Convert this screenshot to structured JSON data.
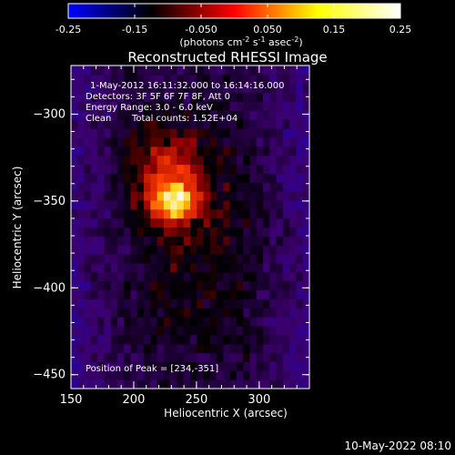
{
  "chart_data": {
    "type": "heatmap",
    "title": "Reconstructed RHESSI Image",
    "xlabel": "Heliocentric X (arcsec)",
    "ylabel": "Heliocentric Y (arcsec)",
    "xlim": [
      150,
      340
    ],
    "ylim": [
      -458,
      -272
    ],
    "x_ticks": [
      150,
      200,
      250,
      300
    ],
    "y_ticks": [
      -300,
      -350,
      -400,
      -450
    ],
    "colorbar": {
      "range": [
        -0.25,
        0.25
      ],
      "ticks": [
        -0.25,
        -0.15,
        -0.05,
        0.05,
        0.15,
        0.25
      ],
      "tick_labels": [
        "-0.25",
        "-0.15",
        "-0.050",
        "0.050",
        "0.15",
        "0.25"
      ],
      "label_text": "(photons cm",
      "label_sup1": "-2",
      "label_mid": " s",
      "label_sup2": "-1",
      "label_mid2": " asec",
      "label_sup3": "-2",
      "label_end": ")",
      "colormap": [
        "#0000ff",
        "#000000",
        "#ff0000",
        "#ffff00",
        "#ffffff"
      ]
    },
    "annotations": {
      "time_range": "1-May-2012 16:11:32.000 to 16:14:16.000",
      "detectors": "Detectors: 3F 5F 6F 7F 8F, Att 0",
      "energy": "Energy Range: 3.0 - 6.0 keV",
      "method": "Clean",
      "total_counts": "Total counts: 1.52E+04",
      "peak": "Position of Peak = [234,-351]"
    },
    "peak": {
      "x": 234,
      "y": -351,
      "value": 0.25
    },
    "sources": [
      {
        "x": 232,
        "y": -350,
        "value": 0.2,
        "sx": 13,
        "sy": 8
      },
      {
        "x": 225,
        "y": -330,
        "value": 0.1,
        "sx": 25,
        "sy": 18
      },
      {
        "x": 250,
        "y": -380,
        "value": 0.05,
        "sx": 40,
        "sy": 45
      }
    ],
    "footer": "10-May-2022 08:10"
  }
}
